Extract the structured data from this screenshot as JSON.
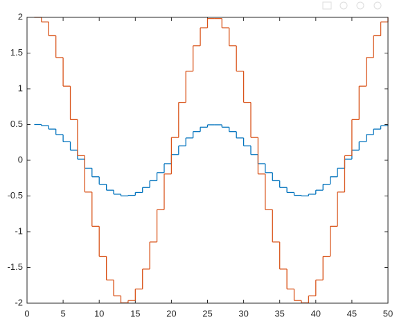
{
  "chart_data": {
    "type": "stairs",
    "x": [
      1,
      2,
      3,
      4,
      5,
      6,
      7,
      8,
      9,
      10,
      11,
      12,
      13,
      14,
      15,
      16,
      17,
      18,
      19,
      20,
      21,
      22,
      23,
      24,
      25,
      26,
      27,
      28,
      29,
      30,
      31,
      32,
      33,
      34,
      35,
      36,
      37,
      38,
      39,
      40,
      41,
      42,
      43,
      44,
      45,
      46,
      47,
      48,
      49,
      50
    ],
    "series": [
      {
        "color": "#0072BD",
        "values": [
          0.5,
          0.484,
          0.436,
          0.359,
          0.259,
          0.142,
          0.016,
          -0.111,
          -0.231,
          -0.336,
          -0.419,
          -0.475,
          -0.499,
          -0.491,
          -0.451,
          -0.381,
          -0.286,
          -0.173,
          -0.048,
          0.08,
          0.202,
          0.312,
          0.401,
          0.463,
          0.496,
          0.496,
          0.463,
          0.401,
          0.312,
          0.202,
          0.08,
          -0.048,
          -0.173,
          -0.286,
          -0.381,
          -0.451,
          -0.491,
          -0.499,
          -0.475,
          -0.419,
          -0.336,
          -0.231,
          -0.111,
          0.016,
          0.142,
          0.259,
          0.359,
          0.436,
          0.484,
          0.5
        ]
      },
      {
        "color": "#D95319",
        "values": [
          2,
          1.935,
          1.743,
          1.437,
          1.037,
          0.569,
          0.064,
          -0.445,
          -0.925,
          -1.345,
          -1.676,
          -1.898,
          -1.996,
          -1.963,
          -1.802,
          -1.523,
          -1.144,
          -0.691,
          -0.192,
          0.319,
          0.81,
          1.247,
          1.603,
          1.854,
          1.984,
          1.984,
          1.854,
          1.603,
          1.247,
          0.81,
          0.319,
          -0.192,
          -0.691,
          -1.144,
          -1.523,
          -1.802,
          -1.963,
          -1.996,
          -1.898,
          -1.676,
          -1.345,
          -0.925,
          -0.445,
          0.064,
          0.569,
          1.037,
          1.437,
          1.743,
          1.935,
          2
        ]
      }
    ],
    "xlim": [
      0,
      50
    ],
    "xticks": [
      0,
      5,
      10,
      15,
      20,
      25,
      30,
      35,
      40,
      45,
      50
    ],
    "ylim": [
      -2,
      2
    ],
    "yticks": [
      -2,
      -1.5,
      -1,
      -0.5,
      0,
      0.5,
      1,
      1.5,
      2
    ],
    "grid": false
  }
}
